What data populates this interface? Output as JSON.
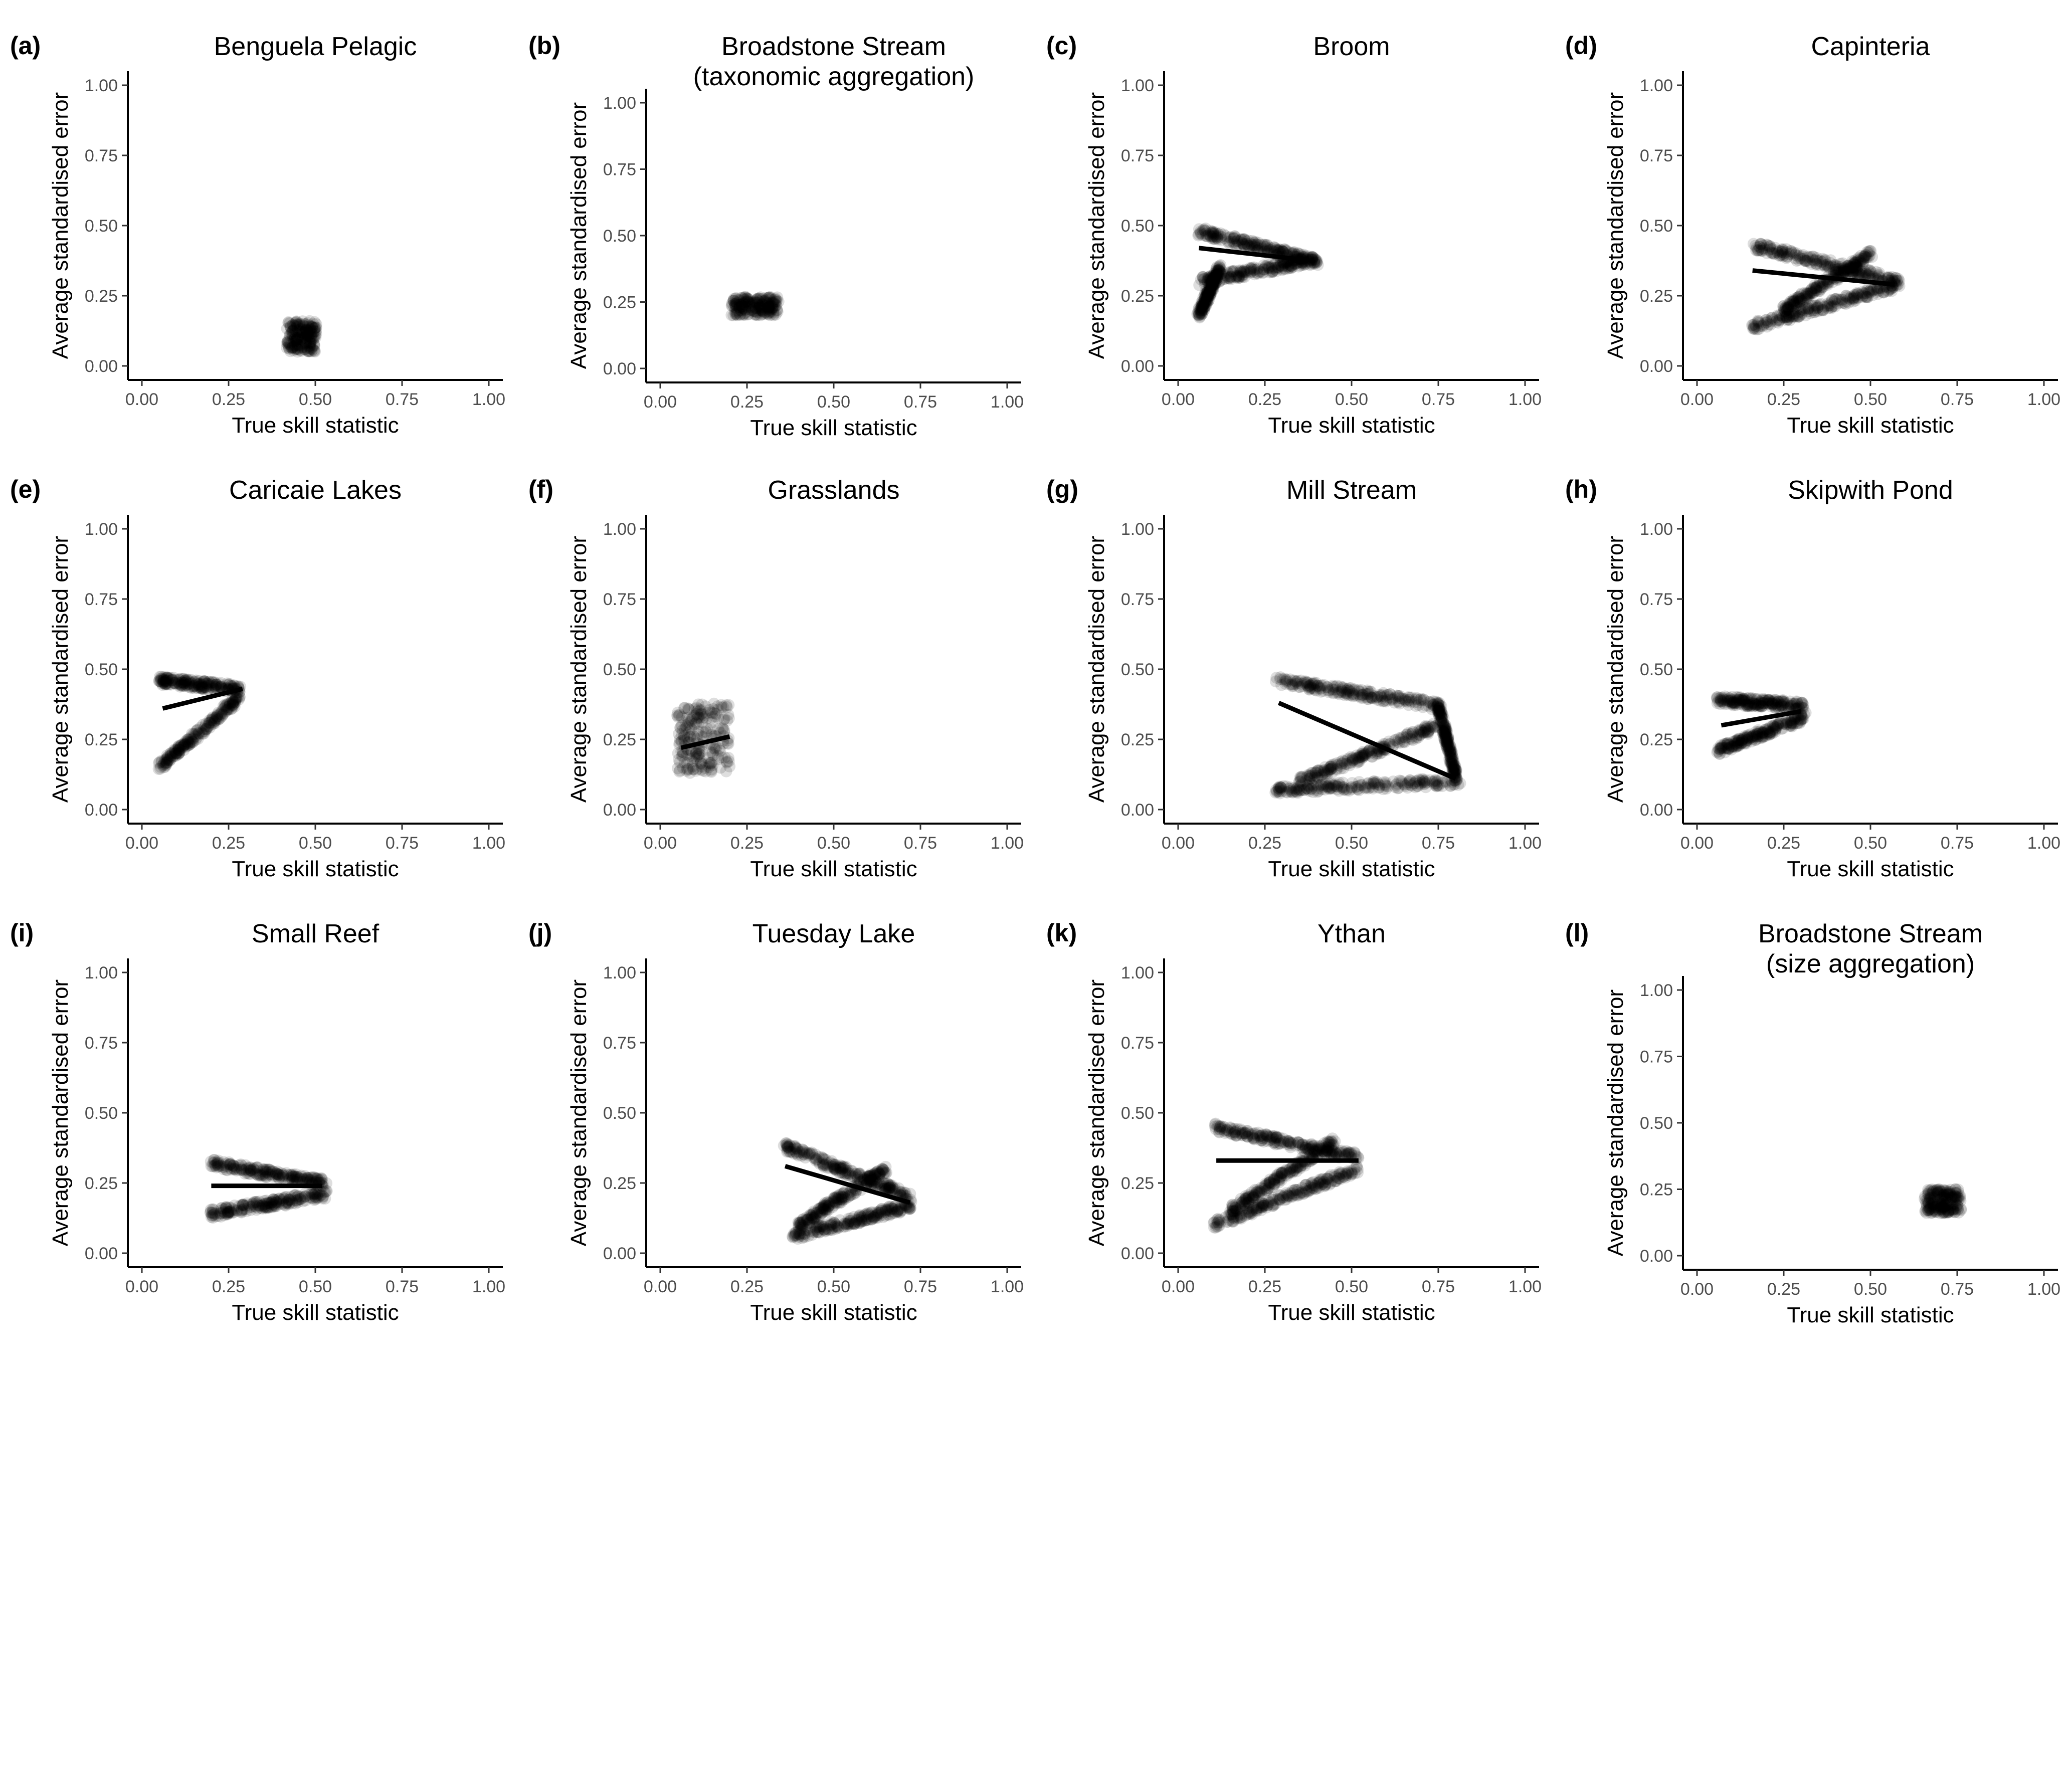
{
  "figure": {
    "xlabel": "True skill statistic",
    "ylabel": "Average standardised error",
    "xticks": [
      "0.00",
      "0.25",
      "0.50",
      "0.75",
      "1.00"
    ],
    "yticks": [
      "0.00",
      "0.25",
      "0.50",
      "0.75",
      "1.00"
    ]
  },
  "chart_data": [
    {
      "type": "scatter",
      "tag": "(a)",
      "title": [
        "Benguela Pelagic"
      ],
      "xlabel": "True skill statistic",
      "ylabel": "Average standardised error",
      "xlim": [
        0,
        1
      ],
      "ylim": [
        0,
        1
      ],
      "grid": false,
      "legend": "none",
      "x_range": [
        0.42,
        0.5
      ],
      "point_bands": [
        {
          "x": [
            0.42,
            0.5
          ],
          "y": [
            0.05,
            0.16
          ]
        }
      ],
      "trend_line": null
    },
    {
      "type": "scatter",
      "tag": "(b)",
      "title": [
        "Broadstone Stream",
        "(taxonomic aggregation)"
      ],
      "xlabel": "True skill statistic",
      "ylabel": "Average standardised error",
      "xlim": [
        0,
        1
      ],
      "ylim": [
        0,
        1
      ],
      "grid": false,
      "legend": "none",
      "x_range": [
        0.21,
        0.34
      ],
      "point_bands": [
        {
          "x": [
            0.21,
            0.34
          ],
          "y": [
            0.2,
            0.27
          ]
        }
      ],
      "trend_line": null
    },
    {
      "type": "scatter",
      "tag": "(c)",
      "title": [
        "Broom"
      ],
      "xlabel": "True skill statistic",
      "ylabel": "Average standardised error",
      "xlim": [
        0,
        1
      ],
      "ylim": [
        0,
        1
      ],
      "grid": false,
      "legend": "none",
      "x_range": [
        0.06,
        0.4
      ],
      "point_bands": [
        {
          "x": [
            0.06,
            0.4
          ],
          "y": [
            0.48,
            0.37
          ]
        },
        {
          "x": [
            0.06,
            0.4
          ],
          "y": [
            0.3,
            0.38
          ]
        },
        {
          "x": [
            0.06,
            0.12
          ],
          "y": [
            0.18,
            0.35
          ]
        }
      ],
      "trend_line": {
        "x": [
          0.06,
          0.35
        ],
        "y": [
          0.42,
          0.38
        ]
      }
    },
    {
      "type": "scatter",
      "tag": "(d)",
      "title": [
        "Capinteria"
      ],
      "xlabel": "True skill statistic",
      "ylabel": "Average standardised error",
      "xlim": [
        0,
        1
      ],
      "ylim": [
        0,
        1
      ],
      "grid": false,
      "legend": "none",
      "x_range": [
        0.16,
        0.58
      ],
      "point_bands": [
        {
          "x": [
            0.16,
            0.58
          ],
          "y": [
            0.43,
            0.3
          ]
        },
        {
          "x": [
            0.16,
            0.58
          ],
          "y": [
            0.14,
            0.29
          ]
        },
        {
          "x": [
            0.25,
            0.5
          ],
          "y": [
            0.2,
            0.4
          ]
        }
      ],
      "trend_line": {
        "x": [
          0.16,
          0.57
        ],
        "y": [
          0.34,
          0.29
        ]
      }
    },
    {
      "type": "scatter",
      "tag": "(e)",
      "title": [
        "Caricaie Lakes"
      ],
      "xlabel": "True skill statistic",
      "ylabel": "Average standardised error",
      "xlim": [
        0,
        1
      ],
      "ylim": [
        0,
        1
      ],
      "grid": false,
      "legend": "none",
      "x_range": [
        0.05,
        0.3
      ],
      "point_bands": [
        {
          "x": [
            0.05,
            0.28
          ],
          "y": [
            0.46,
            0.43
          ]
        },
        {
          "x": [
            0.05,
            0.28
          ],
          "y": [
            0.15,
            0.4
          ]
        }
      ],
      "trend_line": {
        "x": [
          0.06,
          0.29
        ],
        "y": [
          0.36,
          0.43
        ]
      }
    },
    {
      "type": "scatter",
      "tag": "(f)",
      "title": [
        "Grasslands"
      ],
      "xlabel": "True skill statistic",
      "ylabel": "Average standardised error",
      "xlim": [
        0,
        1
      ],
      "ylim": [
        0,
        1
      ],
      "grid": false,
      "legend": "none",
      "x_range": [
        0.05,
        0.2
      ],
      "point_bands": [
        {
          "x": [
            0.05,
            0.2
          ],
          "y": [
            0.13,
            0.38
          ]
        }
      ],
      "trend_line": {
        "x": [
          0.06,
          0.2
        ],
        "y": [
          0.22,
          0.26
        ]
      }
    },
    {
      "type": "scatter",
      "tag": "(g)",
      "title": [
        "Mill Stream"
      ],
      "xlabel": "True skill statistic",
      "ylabel": "Average standardised error",
      "xlim": [
        0,
        1
      ],
      "ylim": [
        0,
        1
      ],
      "grid": false,
      "legend": "none",
      "x_range": [
        0.28,
        0.82
      ],
      "point_bands": [
        {
          "x": [
            0.28,
            0.75
          ],
          "y": [
            0.46,
            0.37
          ]
        },
        {
          "x": [
            0.75,
            0.8
          ],
          "y": [
            0.37,
            0.12
          ]
        },
        {
          "x": [
            0.28,
            0.81
          ],
          "y": [
            0.07,
            0.1
          ]
        },
        {
          "x": [
            0.35,
            0.75
          ],
          "y": [
            0.1,
            0.3
          ]
        }
      ],
      "trend_line": {
        "x": [
          0.29,
          0.8
        ],
        "y": [
          0.38,
          0.11
        ]
      }
    },
    {
      "type": "scatter",
      "tag": "(h)",
      "title": [
        "Skipwith Pond"
      ],
      "xlabel": "True skill statistic",
      "ylabel": "Average standardised error",
      "xlim": [
        0,
        1
      ],
      "ylim": [
        0,
        1
      ],
      "grid": false,
      "legend": "none",
      "x_range": [
        0.06,
        0.31
      ],
      "point_bands": [
        {
          "x": [
            0.06,
            0.31
          ],
          "y": [
            0.39,
            0.37
          ]
        },
        {
          "x": [
            0.06,
            0.31
          ],
          "y": [
            0.21,
            0.33
          ]
        }
      ],
      "trend_line": {
        "x": [
          0.07,
          0.3
        ],
        "y": [
          0.3,
          0.35
        ]
      }
    },
    {
      "type": "scatter",
      "tag": "(i)",
      "title": [
        "Small Reef"
      ],
      "xlabel": "True skill statistic",
      "ylabel": "Average standardised error",
      "xlim": [
        0,
        1
      ],
      "ylim": [
        0,
        1
      ],
      "grid": false,
      "legend": "none",
      "x_range": [
        0.2,
        0.53
      ],
      "point_bands": [
        {
          "x": [
            0.2,
            0.53
          ],
          "y": [
            0.32,
            0.25
          ]
        },
        {
          "x": [
            0.2,
            0.53
          ],
          "y": [
            0.14,
            0.21
          ]
        }
      ],
      "trend_line": {
        "x": [
          0.2,
          0.52
        ],
        "y": [
          0.24,
          0.24
        ]
      }
    },
    {
      "type": "scatter",
      "tag": "(j)",
      "title": [
        "Tuesday Lake"
      ],
      "xlabel": "True skill statistic",
      "ylabel": "Average standardised error",
      "xlim": [
        0,
        1
      ],
      "ylim": [
        0,
        1
      ],
      "grid": false,
      "legend": "none",
      "x_range": [
        0.35,
        0.73
      ],
      "point_bands": [
        {
          "x": [
            0.36,
            0.72
          ],
          "y": [
            0.38,
            0.2
          ]
        },
        {
          "x": [
            0.38,
            0.72
          ],
          "y": [
            0.06,
            0.17
          ]
        },
        {
          "x": [
            0.4,
            0.65
          ],
          "y": [
            0.1,
            0.3
          ]
        }
      ],
      "trend_line": {
        "x": [
          0.36,
          0.72
        ],
        "y": [
          0.31,
          0.18
        ]
      }
    },
    {
      "type": "scatter",
      "tag": "(k)",
      "title": [
        "Ythan"
      ],
      "xlabel": "True skill statistic",
      "ylabel": "Average standardised error",
      "xlim": [
        0,
        1
      ],
      "ylim": [
        0,
        1
      ],
      "grid": false,
      "legend": "none",
      "x_range": [
        0.1,
        0.53
      ],
      "point_bands": [
        {
          "x": [
            0.1,
            0.52
          ],
          "y": [
            0.45,
            0.34
          ]
        },
        {
          "x": [
            0.1,
            0.52
          ],
          "y": [
            0.1,
            0.3
          ]
        },
        {
          "x": [
            0.15,
            0.45
          ],
          "y": [
            0.15,
            0.4
          ]
        }
      ],
      "trend_line": {
        "x": [
          0.11,
          0.52
        ],
        "y": [
          0.33,
          0.33
        ]
      }
    },
    {
      "type": "scatter",
      "tag": "(l)",
      "title": [
        "Broadstone Stream",
        "(size aggregation)"
      ],
      "xlabel": "True skill statistic",
      "ylabel": "Average standardised error",
      "xlim": [
        0,
        1
      ],
      "ylim": [
        0,
        1
      ],
      "grid": false,
      "legend": "none",
      "x_range": [
        0.66,
        0.76
      ],
      "point_bands": [
        {
          "x": [
            0.66,
            0.76
          ],
          "y": [
            0.16,
            0.25
          ]
        }
      ],
      "trend_line": null
    }
  ]
}
